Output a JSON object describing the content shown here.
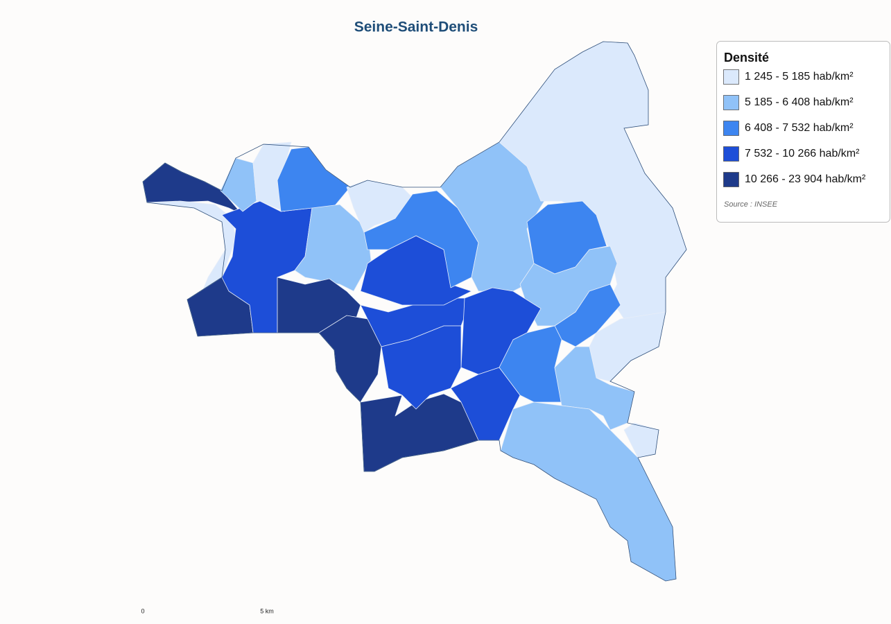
{
  "title": "Seine-Saint-Denis",
  "legend": {
    "title": "Densité",
    "items": [
      {
        "label": "1 245 - 5 185 hab/km²",
        "color": "#dbe9fc"
      },
      {
        "label": "5 185 - 6 408 hab/km²",
        "color": "#90c2f8"
      },
      {
        "label": "6 408 - 7 532 hab/km²",
        "color": "#3d85f0"
      },
      {
        "label": "7 532 - 10 266 hab/km²",
        "color": "#1d4ed8"
      },
      {
        "label": "10 266 - 23 904 hab/km²",
        "color": "#1e3a8a"
      }
    ],
    "source": "Source : INSEE"
  },
  "scale": {
    "start": "0",
    "end": "5 km"
  }
}
